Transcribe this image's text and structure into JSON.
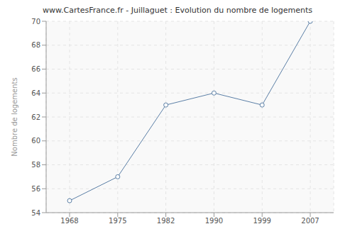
{
  "chart_data": {
    "type": "line",
    "title": "www.CartesFrance.fr - Juillaguet : Evolution du nombre de logements",
    "y_label": "Nombre de logements",
    "categories": [
      "1968",
      "1975",
      "1982",
      "1990",
      "1999",
      "2007"
    ],
    "values": [
      55,
      57,
      63,
      64,
      63,
      70
    ],
    "color": "#5b7fa6",
    "marker": "circle",
    "ylim": [
      54,
      70
    ],
    "yticks": [
      54,
      56,
      58,
      60,
      62,
      64,
      66,
      68,
      70
    ],
    "grid": true
  }
}
